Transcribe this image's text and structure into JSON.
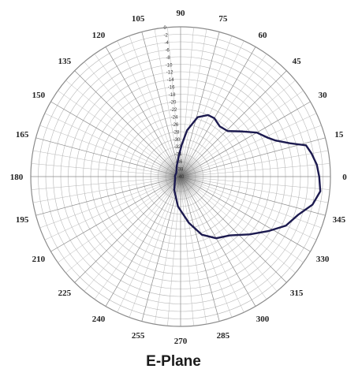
{
  "caption": "E-Plane",
  "colors": {
    "pattern": "#1c1a4f",
    "grid": "#b7b7b7",
    "grid_dense": "#8a8a8a",
    "labels": "#222222"
  },
  "chart_data": {
    "type": "polar-line",
    "title": "E-Plane",
    "angle_labels": [
      "0",
      "15",
      "30",
      "45",
      "60",
      "75",
      "90",
      "105",
      "120",
      "135",
      "150",
      "165",
      "180",
      "195",
      "210",
      "225",
      "240",
      "255",
      "270",
      "285",
      "300",
      "315",
      "330",
      "345"
    ],
    "angle_unit": "degrees",
    "radial_ticks": [
      "0",
      "-2",
      "-4",
      "-6",
      "-8",
      "-10",
      "-12",
      "-14",
      "-16",
      "-18",
      "-20",
      "-22",
      "-24",
      "-26",
      "-28",
      "-30",
      "-32",
      "-34",
      "-36",
      "-38",
      "-40"
    ],
    "radial_range": [
      -40,
      0
    ],
    "grid": true,
    "series": [
      {
        "points": [
          {
            "theta": 0,
            "r": -3
          },
          {
            "theta": 5,
            "r": -3.5
          },
          {
            "theta": 10,
            "r": -4.5
          },
          {
            "theta": 14,
            "r": -5.5
          },
          {
            "theta": 17,
            "r": -9.5
          },
          {
            "theta": 21,
            "r": -13
          },
          {
            "theta": 24,
            "r": -14.5
          },
          {
            "theta": 30,
            "r": -16.5
          },
          {
            "theta": 36,
            "r": -19.5
          },
          {
            "theta": 44,
            "r": -22.5
          },
          {
            "theta": 52,
            "r": -23
          },
          {
            "theta": 60,
            "r": -22
          },
          {
            "theta": 66,
            "r": -22
          },
          {
            "theta": 74,
            "r": -23.5
          },
          {
            "theta": 82,
            "r": -27.5
          },
          {
            "theta": 88,
            "r": -31.5
          },
          {
            "theta": 95,
            "r": -34.5
          },
          {
            "theta": 110,
            "r": -37
          },
          {
            "theta": 140,
            "r": -38.5
          },
          {
            "theta": 170,
            "r": -38.5
          },
          {
            "theta": 180,
            "r": -38.5
          },
          {
            "theta": 195,
            "r": -38.5
          },
          {
            "theta": 220,
            "r": -38
          },
          {
            "theta": 245,
            "r": -36
          },
          {
            "theta": 265,
            "r": -32
          },
          {
            "theta": 280,
            "r": -27.5
          },
          {
            "theta": 290,
            "r": -23.5
          },
          {
            "theta": 300,
            "r": -21
          },
          {
            "theta": 310,
            "r": -19.5
          },
          {
            "theta": 320,
            "r": -16
          },
          {
            "theta": 328,
            "r": -12.5
          },
          {
            "theta": 335,
            "r": -9
          },
          {
            "theta": 342,
            "r": -7
          },
          {
            "theta": 348,
            "r": -4
          },
          {
            "theta": 354,
            "r": -2.5
          },
          {
            "theta": 360,
            "r": -3
          }
        ]
      }
    ]
  }
}
